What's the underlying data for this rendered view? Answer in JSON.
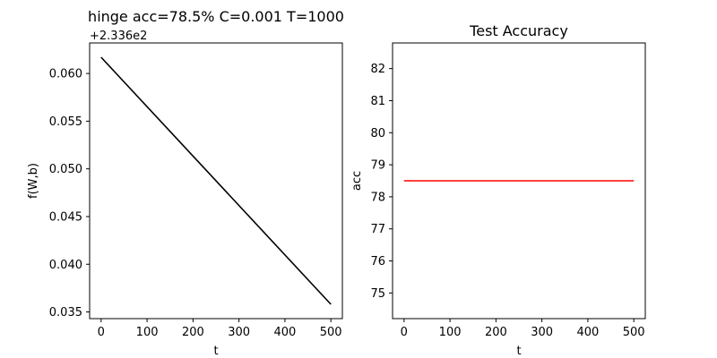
{
  "chart_data": [
    {
      "type": "line",
      "title": "hinge acc=78.5% C=0.001 T=1000",
      "xlabel": "t",
      "ylabel": "f(W,b)",
      "y_offset_text": "+2.336e2",
      "xlim": [
        -25,
        525
      ],
      "ylim": [
        0.0343,
        0.0632
      ],
      "xticks": [
        0,
        100,
        200,
        300,
        400,
        500
      ],
      "yticks": [
        0.035,
        0.04,
        0.045,
        0.05,
        0.055,
        0.06
      ],
      "ytick_labels": [
        "0.035",
        "0.040",
        "0.045",
        "0.050",
        "0.055",
        "0.060"
      ],
      "grid": false,
      "series": [
        {
          "color": "#000000",
          "x": [
            0,
            500
          ],
          "y": [
            0.0617,
            0.0358
          ]
        }
      ]
    },
    {
      "type": "line",
      "title": "Test Accuracy",
      "xlabel": "t",
      "ylabel": "acc",
      "xlim": [
        -25,
        525
      ],
      "ylim": [
        74.2,
        82.8
      ],
      "xticks": [
        0,
        100,
        200,
        300,
        400,
        500
      ],
      "yticks": [
        75,
        76,
        77,
        78,
        79,
        80,
        81,
        82
      ],
      "ytick_labels": [
        "75",
        "76",
        "77",
        "78",
        "79",
        "80",
        "81",
        "82"
      ],
      "grid": false,
      "series": [
        {
          "color": "#ff0000",
          "x": [
            0,
            500
          ],
          "y": [
            78.5,
            78.5
          ]
        }
      ]
    }
  ]
}
